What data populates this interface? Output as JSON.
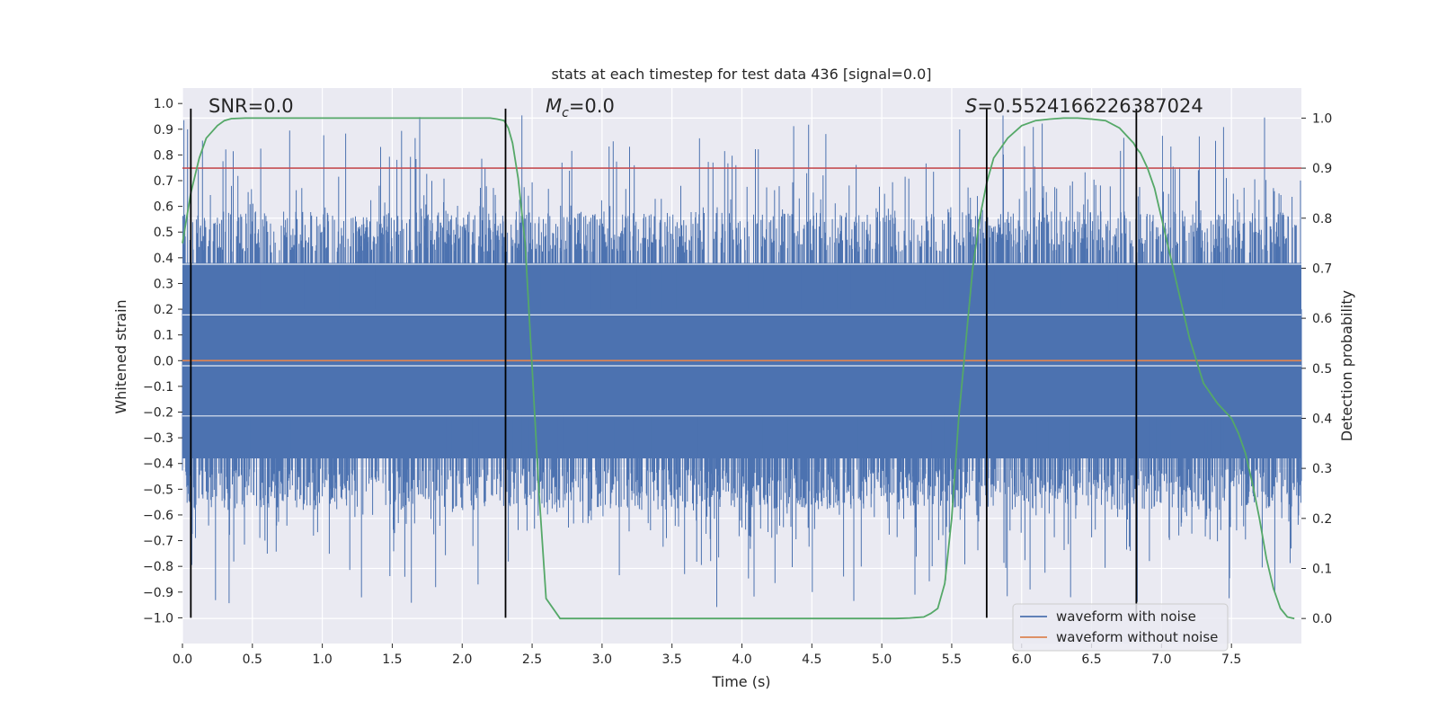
{
  "chart_data": {
    "type": "line",
    "title": "stats at each timestep for test data 436 [signal=0.0]",
    "xlabel": "Time (s)",
    "ylabel": "Whitened strain",
    "y2label": "Detection probability",
    "xlim": [
      0.0,
      8.0
    ],
    "ylim": [
      -1.1,
      1.06
    ],
    "y2lim": [
      -0.05,
      1.06
    ],
    "xticks": [
      "0.0",
      "0.5",
      "1.0",
      "1.5",
      "2.0",
      "2.5",
      "3.0",
      "3.5",
      "4.0",
      "4.5",
      "5.0",
      "5.5",
      "6.0",
      "6.5",
      "7.0",
      "7.5"
    ],
    "yticks": [
      "1.0",
      "0.9",
      "0.8",
      "0.7",
      "0.6",
      "0.5",
      "0.4",
      "0.3",
      "0.2",
      "0.1",
      "0.0",
      "-0.1",
      "-0.2",
      "-0.3",
      "-0.4",
      "-0.5",
      "-0.6",
      "-0.7",
      "-0.8",
      "-0.9",
      "-1.0"
    ],
    "y2ticks": [
      "1.0",
      "0.9",
      "0.8",
      "0.7",
      "0.6",
      "0.5",
      "0.4",
      "0.3",
      "0.2",
      "0.1",
      "0.0"
    ],
    "annotations": {
      "snr": "SNR=0.0",
      "mc_symbol": "M",
      "mc_sub": "c",
      "mc_value": "=0.0",
      "s_symbol": "S",
      "s_value": "=0.5524166226387024"
    },
    "legend": {
      "placement": "lower-right",
      "entries": [
        "waveform with noise",
        "waveform without noise"
      ]
    },
    "threshold": {
      "axis": "right",
      "value": 0.9,
      "color": "#c44e52"
    },
    "vertical_lines": {
      "x": [
        0.06,
        2.31,
        5.75,
        6.82
      ],
      "ymin": -1.0,
      "ymax": 0.98
    },
    "series": [
      {
        "name": "waveform with noise",
        "axis": "left",
        "color": "#4c72b0",
        "description": "Gaussian-like noise from 0 to 8 s, dense band about +/-0.38 with spikes up to about +/-0.96"
      },
      {
        "name": "waveform without noise",
        "axis": "left",
        "color": "#dd8452",
        "x": [
          0.0,
          8.0
        ],
        "values": [
          0.0,
          0.0
        ]
      },
      {
        "name": "Detection probability",
        "axis": "right",
        "color": "#55a868",
        "x": [
          0.0,
          0.06,
          0.12,
          0.17,
          0.25,
          0.3,
          0.35,
          0.45,
          0.6,
          0.8,
          1.0,
          1.5,
          2.0,
          2.1,
          2.2,
          2.25,
          2.3,
          2.33,
          2.36,
          2.4,
          2.45,
          2.5,
          2.55,
          2.6,
          2.7,
          2.8,
          3.0,
          4.0,
          4.5,
          5.0,
          5.1,
          5.2,
          5.3,
          5.35,
          5.4,
          5.45,
          5.5,
          5.55,
          5.6,
          5.65,
          5.7,
          5.75,
          5.8,
          5.9,
          6.0,
          6.1,
          6.2,
          6.3,
          6.4,
          6.5,
          6.6,
          6.7,
          6.75,
          6.8,
          6.82,
          6.85,
          6.9,
          6.95,
          7.0,
          7.1,
          7.2,
          7.3,
          7.4,
          7.5,
          7.55,
          7.6,
          7.65,
          7.7,
          7.75,
          7.8,
          7.85,
          7.9,
          7.95
        ],
        "values": [
          0.75,
          0.85,
          0.92,
          0.96,
          0.985,
          0.995,
          0.999,
          1.0,
          1.0,
          1.0,
          1.0,
          1.0,
          1.0,
          1.0,
          1.0,
          0.998,
          0.995,
          0.98,
          0.95,
          0.88,
          0.75,
          0.5,
          0.25,
          0.04,
          0.0,
          0.0,
          0.0,
          0.0,
          0.0,
          0.0,
          0.0,
          0.001,
          0.003,
          0.01,
          0.02,
          0.07,
          0.2,
          0.4,
          0.55,
          0.7,
          0.8,
          0.87,
          0.92,
          0.96,
          0.985,
          0.995,
          0.998,
          1.0,
          1.0,
          0.998,
          0.995,
          0.98,
          0.965,
          0.95,
          0.94,
          0.93,
          0.9,
          0.86,
          0.8,
          0.68,
          0.56,
          0.47,
          0.43,
          0.4,
          0.37,
          0.33,
          0.27,
          0.2,
          0.12,
          0.06,
          0.02,
          0.003,
          0.0
        ]
      }
    ]
  }
}
